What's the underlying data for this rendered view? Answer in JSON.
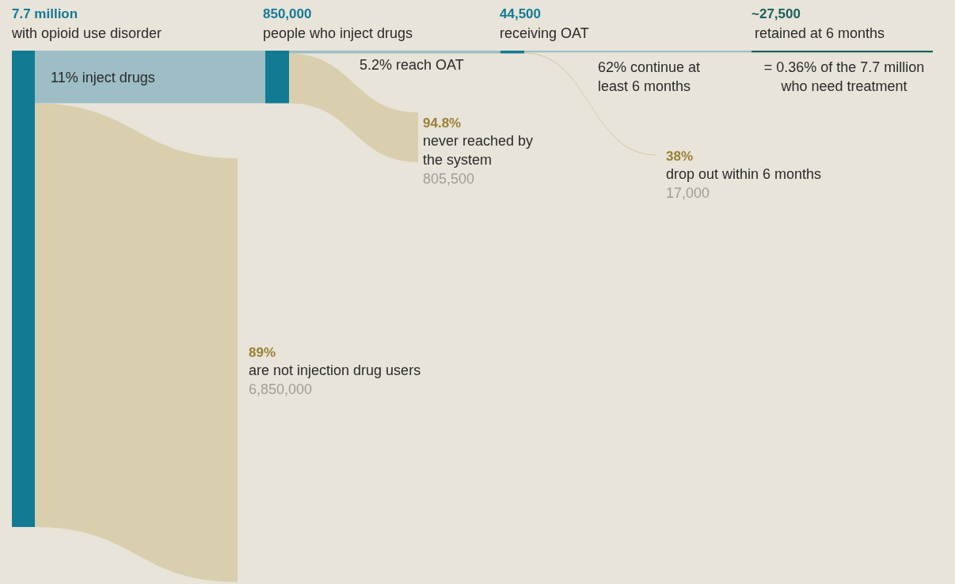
{
  "chart_data": {
    "type": "other",
    "categories": [
      "with opioid use disorder",
      "people who inject drugs",
      "receiving OAT",
      "retained at 6 months"
    ],
    "series": [
      {
        "colors": [
          "#137a94",
          "#137a94",
          "#137a94",
          "#1c5f5b"
        ],
        "values": [
          7700000,
          850000,
          44500,
          27500
        ],
        "value_labels": [
          "7.7 million",
          "850,000",
          "44,500",
          "~27,500"
        ]
      }
    ],
    "color": "#d9cfae",
    "annotations": [
      "11% inject drugs",
      "5.2% reach OAT",
      "62% continue at least 6 months",
      "= 0.36% of the 7.7 million who need treatment",
      "89%",
      "are not injection drug users",
      "6,850,000",
      "94.8%",
      "never reached by the system",
      "805,500",
      "38%",
      "drop out within 6 months",
      "17,000"
    ]
  }
}
